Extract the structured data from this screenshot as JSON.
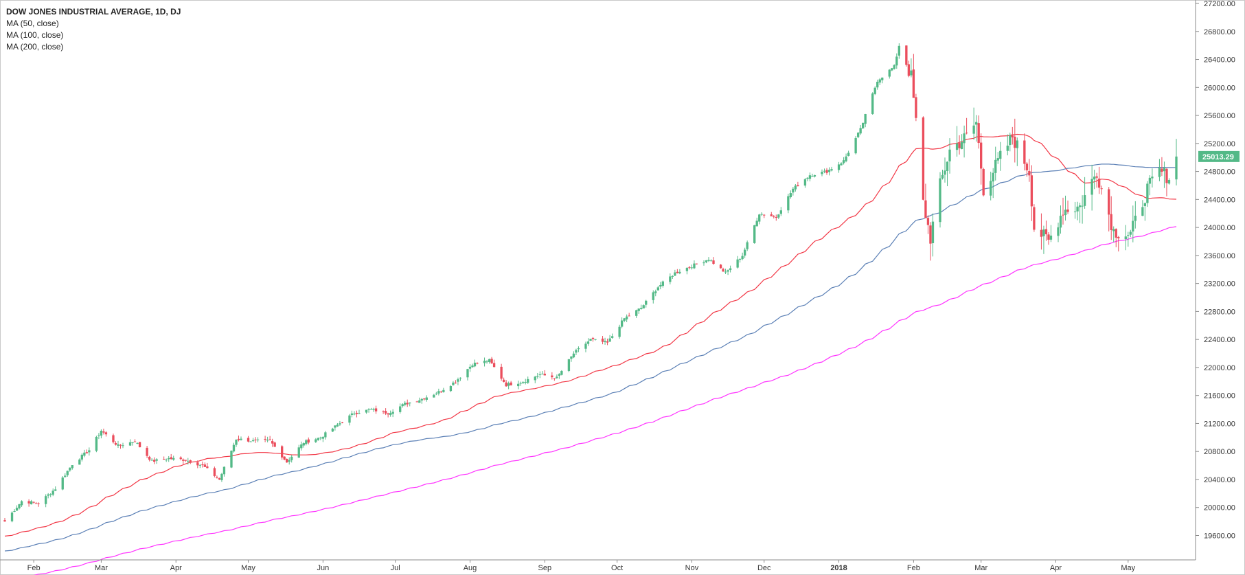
{
  "chart_data": {
    "type": "candlestick",
    "title": "DOW JONES INDUSTRIAL AVERAGE, 1D, DJ",
    "indicators": [
      {
        "name": "MA (50, close)",
        "color": "#f23645"
      },
      {
        "name": "MA (100, close)",
        "color": "#5a7fb5"
      },
      {
        "name": "MA (200, close)",
        "color": "#ff33ff"
      }
    ],
    "ylim": [
      19200,
      27400
    ],
    "yticks": [
      "27200.00",
      "26800.00",
      "26400.00",
      "26000.00",
      "25600.00",
      "25200.00",
      "24800.00",
      "24400.00",
      "24000.00",
      "23600.00",
      "23200.00",
      "22800.00",
      "22400.00",
      "22000.00",
      "21600.00",
      "21200.00",
      "20800.00",
      "20400.00",
      "20000.00",
      "19600.00"
    ],
    "xticks": [
      {
        "label": "Feb",
        "date": "2017-02-01"
      },
      {
        "label": "Mar",
        "date": "2017-03-01"
      },
      {
        "label": "Apr",
        "date": "2017-04-01"
      },
      {
        "label": "May",
        "date": "2017-05-01"
      },
      {
        "label": "Jun",
        "date": "2017-06-01"
      },
      {
        "label": "Jul",
        "date": "2017-07-01"
      },
      {
        "label": "Aug",
        "date": "2017-08-01"
      },
      {
        "label": "Sep",
        "date": "2017-09-01"
      },
      {
        "label": "Oct",
        "date": "2017-10-01"
      },
      {
        "label": "Nov",
        "date": "2017-11-01"
      },
      {
        "label": "Dec",
        "date": "2017-12-01"
      },
      {
        "label": "2018",
        "date": "2018-01-01",
        "bold": true
      },
      {
        "label": "Feb",
        "date": "2018-02-01"
      },
      {
        "label": "Mar",
        "date": "2018-03-01"
      },
      {
        "label": "Apr",
        "date": "2018-04-01"
      },
      {
        "label": "May",
        "date": "2018-05-01"
      }
    ],
    "last_price": {
      "label": "25013.29",
      "value": 25013.29,
      "color": "#53b987"
    },
    "candle_colors": {
      "up": "#53b987",
      "down": "#eb4d5c"
    },
    "price_anchors": [
      [
        "2017-01-20",
        19800
      ],
      [
        "2017-01-27",
        20090
      ],
      [
        "2017-02-03",
        20060
      ],
      [
        "2017-02-10",
        20270
      ],
      [
        "2017-02-17",
        20620
      ],
      [
        "2017-02-24",
        20820
      ],
      [
        "2017-03-01",
        21100
      ],
      [
        "2017-03-08",
        20880
      ],
      [
        "2017-03-15",
        20950
      ],
      [
        "2017-03-22",
        20660
      ],
      [
        "2017-03-29",
        20700
      ],
      [
        "2017-04-05",
        20680
      ],
      [
        "2017-04-12",
        20600
      ],
      [
        "2017-04-19",
        20400
      ],
      [
        "2017-04-26",
        20980
      ],
      [
        "2017-05-03",
        20950
      ],
      [
        "2017-05-10",
        20950
      ],
      [
        "2017-05-17",
        20650
      ],
      [
        "2017-05-24",
        20930
      ],
      [
        "2017-05-31",
        21000
      ],
      [
        "2017-06-07",
        21180
      ],
      [
        "2017-06-14",
        21350
      ],
      [
        "2017-06-21",
        21400
      ],
      [
        "2017-06-28",
        21350
      ],
      [
        "2017-07-05",
        21480
      ],
      [
        "2017-07-12",
        21550
      ],
      [
        "2017-07-19",
        21650
      ],
      [
        "2017-07-26",
        21800
      ],
      [
        "2017-08-02",
        22050
      ],
      [
        "2017-08-09",
        22100
      ],
      [
        "2017-08-16",
        21750
      ],
      [
        "2017-08-23",
        21800
      ],
      [
        "2017-08-30",
        21900
      ],
      [
        "2017-09-06",
        21850
      ],
      [
        "2017-09-13",
        22200
      ],
      [
        "2017-09-20",
        22400
      ],
      [
        "2017-09-27",
        22350
      ],
      [
        "2017-10-04",
        22700
      ],
      [
        "2017-10-11",
        22850
      ],
      [
        "2017-10-18",
        23150
      ],
      [
        "2017-10-25",
        23350
      ],
      [
        "2017-11-01",
        23450
      ],
      [
        "2017-11-08",
        23550
      ],
      [
        "2017-11-15",
        23350
      ],
      [
        "2017-11-22",
        23600
      ],
      [
        "2017-11-29",
        24200
      ],
      [
        "2017-12-06",
        24150
      ],
      [
        "2017-12-13",
        24550
      ],
      [
        "2017-12-20",
        24750
      ],
      [
        "2017-12-27",
        24800
      ],
      [
        "2018-01-03",
        24950
      ],
      [
        "2018-01-10",
        25400
      ],
      [
        "2018-01-17",
        26100
      ],
      [
        "2018-01-24",
        26300
      ],
      [
        "2018-01-26",
        26600
      ],
      [
        "2018-01-31",
        26150
      ],
      [
        "2018-02-02",
        25500
      ],
      [
        "2018-02-05",
        24350
      ],
      [
        "2018-02-08",
        23850
      ],
      [
        "2018-02-12",
        24600
      ],
      [
        "2018-02-16",
        25100
      ],
      [
        "2018-02-23",
        25300
      ],
      [
        "2018-02-27",
        25500
      ],
      [
        "2018-03-02",
        24550
      ],
      [
        "2018-03-09",
        25000
      ],
      [
        "2018-03-14",
        25300
      ],
      [
        "2018-03-21",
        24800
      ],
      [
        "2018-03-23",
        24000
      ],
      [
        "2018-03-29",
        23800
      ],
      [
        "2018-04-04",
        24250
      ],
      [
        "2018-04-11",
        24300
      ],
      [
        "2018-04-18",
        24800
      ],
      [
        "2018-04-25",
        23950
      ],
      [
        "2018-05-02",
        23900
      ],
      [
        "2018-05-09",
        24550
      ],
      [
        "2018-05-14",
        24800
      ],
      [
        "2018-05-18",
        24720
      ],
      [
        "2018-05-21",
        25013
      ]
    ]
  }
}
